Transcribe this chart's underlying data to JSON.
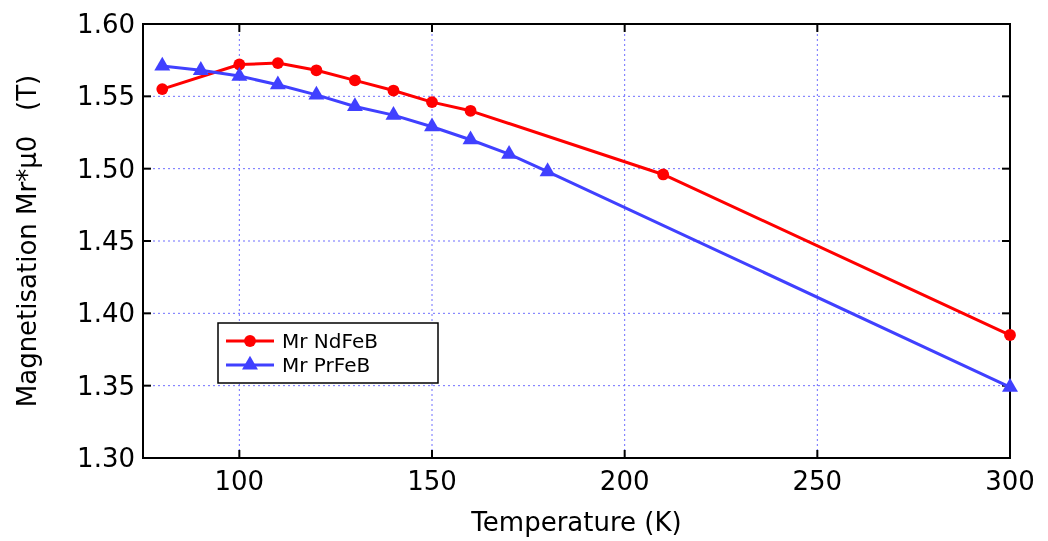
{
  "chart_data": {
    "type": "line",
    "xlabel": "Temperature (K)",
    "ylabel": "Magnetisation Mr*µ0   (T)",
    "xlim": [
      75,
      300
    ],
    "xticks": [
      100,
      150,
      200,
      250,
      300
    ],
    "ylim": [
      1.3,
      1.6
    ],
    "yticks": [
      {
        "value": 1.3,
        "label": "1.30"
      },
      {
        "value": 1.35,
        "label": "1.35"
      },
      {
        "value": 1.4,
        "label": "1.40"
      },
      {
        "value": 1.45,
        "label": "1.45"
      },
      {
        "value": 1.5,
        "label": "1.50"
      },
      {
        "value": 1.55,
        "label": "1.55"
      },
      {
        "value": 1.6,
        "label": "1.60"
      }
    ],
    "grid": true,
    "legend": "bottom left",
    "line_style": "solid",
    "series": [
      {
        "name": "Mr NdFeB",
        "color": "#ff0000",
        "marker": "circle",
        "x": [
          80,
          100,
          110,
          120,
          130,
          140,
          150,
          160,
          210,
          300
        ],
        "values": [
          1.555,
          1.572,
          1.573,
          1.568,
          1.561,
          1.554,
          1.546,
          1.54,
          1.496,
          1.385
        ]
      },
      {
        "name": "Mr PrFeB",
        "color": "#4040ff",
        "marker": "triangle",
        "x": [
          80,
          90,
          100,
          110,
          120,
          130,
          140,
          150,
          160,
          170,
          180,
          300
        ],
        "values": [
          1.571,
          1.568,
          1.564,
          1.558,
          1.551,
          1.543,
          1.537,
          1.529,
          1.52,
          1.51,
          1.498,
          1.349
        ]
      }
    ]
  }
}
